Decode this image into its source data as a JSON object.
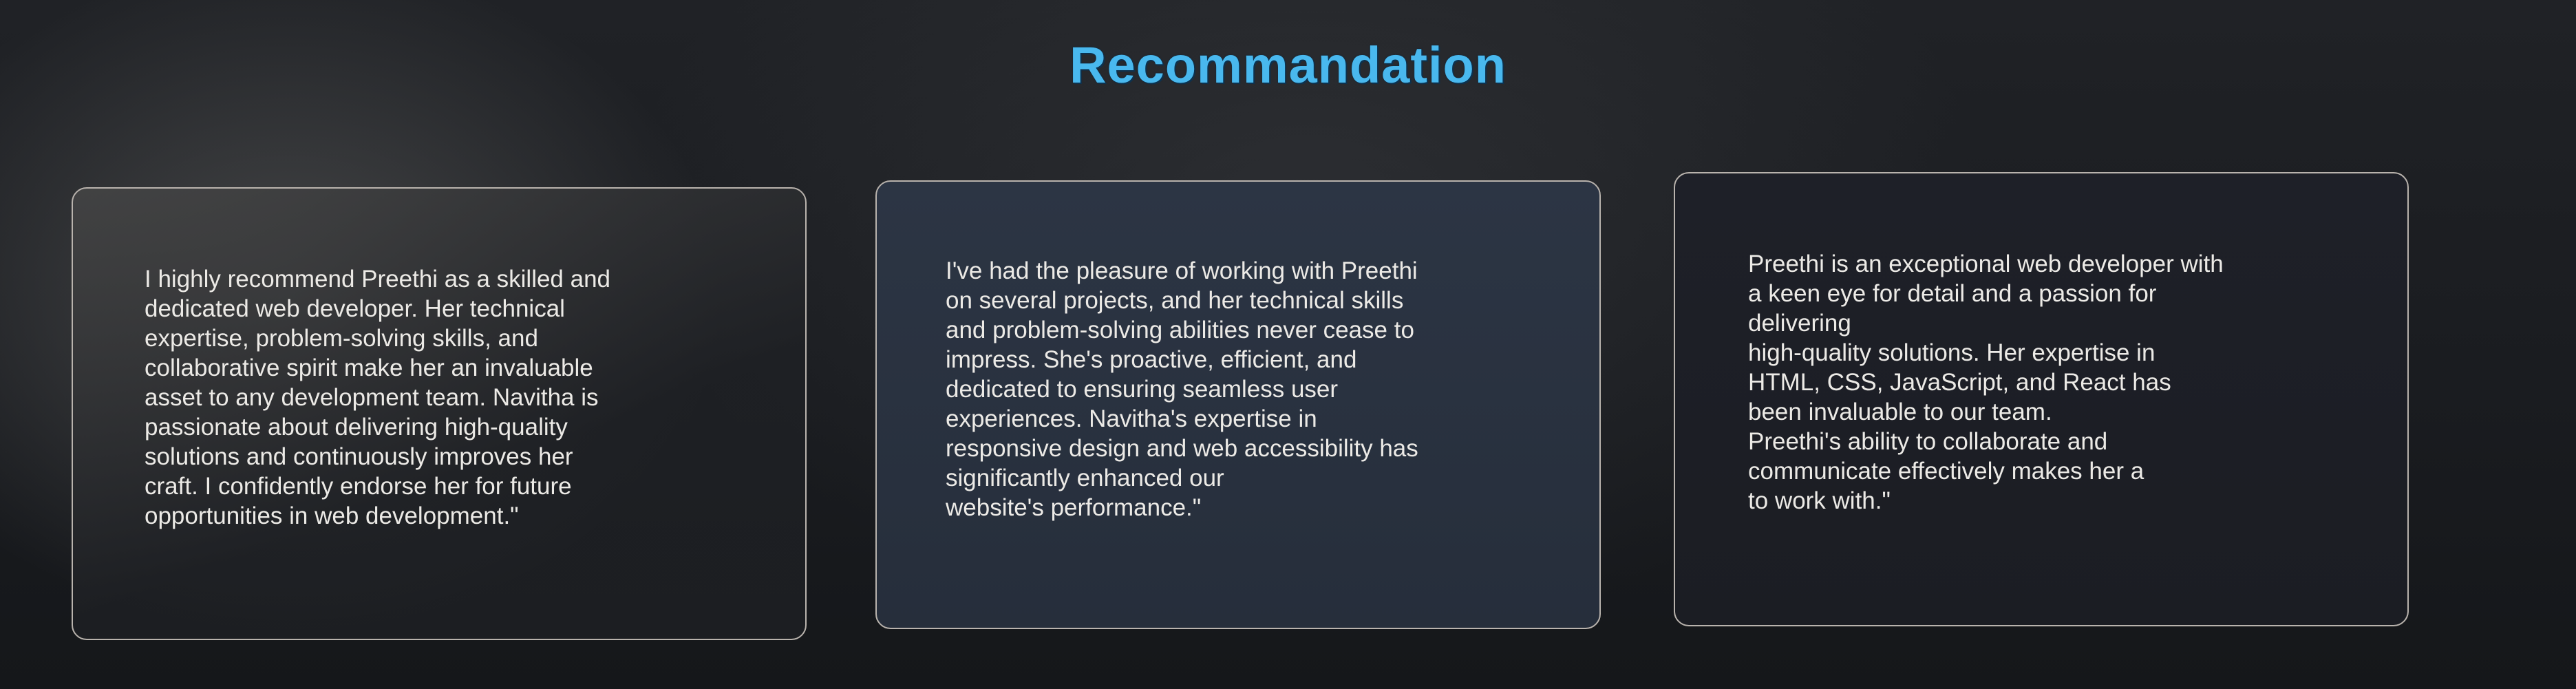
{
  "section": {
    "title": "Recommandation"
  },
  "recommendations": [
    {
      "text": "I highly recommend Preethi as a skilled and\ndedicated web developer. Her technical\nexpertise, problem-solving skills, and\ncollaborative spirit make her an invaluable\nasset to any development team. Navitha is\npassionate about delivering high-quality\nsolutions and continuously improves her\ncraft. I confidently endorse her for future\nopportunities in web development.\""
    },
    {
      "text": "I've had the pleasure of working with Preethi\non several projects, and her technical skills\nand problem-solving abilities never cease to\nimpress. She's proactive, efficient, and\ndedicated to ensuring seamless user\nexperiences. Navitha's expertise in\nresponsive design and web accessibility has\nsignificantly enhanced our\nwebsite's performance.\""
    },
    {
      "text": "Preethi is an exceptional web developer with\na keen eye for detail and a passion for\ndelivering\nhigh-quality solutions. Her expertise in\nHTML, CSS, JavaScript, and React has\nbeen invaluable to our team.\nPreethi's ability to collaborate and\ncommunicate effectively makes her a\n to work with.\""
    }
  ],
  "colors": {
    "heading": "#49b8ee",
    "text": "#eceae6",
    "card_border": "#b9b3ad",
    "background": "#1b1d21"
  }
}
